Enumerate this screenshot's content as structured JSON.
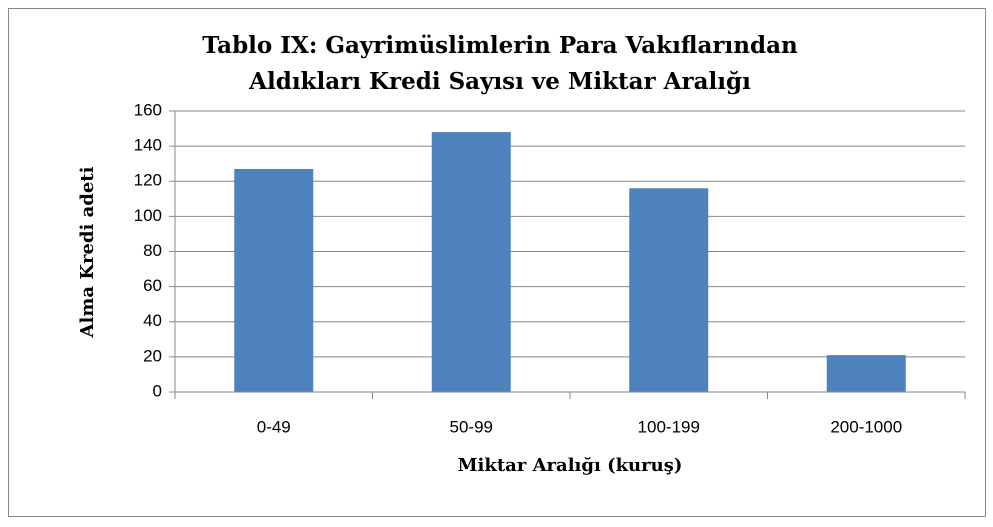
{
  "chart_data": {
    "type": "bar",
    "title": [
      "Tablo IX: Gayrimüslimlerin Para Vakıflarından",
      "Aldıkları Kredi Sayısı ve Miktar Aralığı"
    ],
    "x_label": "Miktar Aralığı (kuruş)",
    "y_label": "Alma Kredi adeti",
    "categories": [
      "0-49",
      "50-99",
      "100-199",
      "200-1000"
    ],
    "values": [
      127,
      148,
      116,
      21
    ],
    "color": "#4f81bd",
    "ylim": [
      0,
      160
    ],
    "yticks": [
      0,
      20,
      40,
      60,
      80,
      100,
      120,
      140,
      160
    ],
    "grid": true
  }
}
